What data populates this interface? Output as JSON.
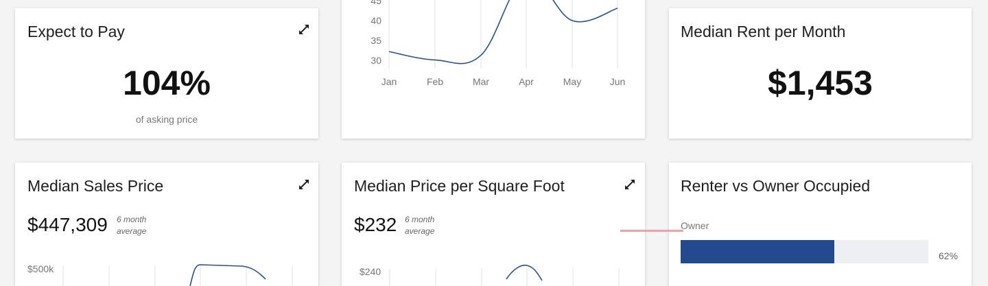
{
  "colors": {
    "line": "#2a4f8f",
    "bar_fill": "#234a8c",
    "bar_track": "#eef0f4",
    "grid": "#e2e2e2",
    "highlight_line": "#e8a3ab"
  },
  "cards": {
    "expect_to_pay": {
      "title": "Expect to Pay",
      "value": "104%",
      "caption": "of asking price",
      "icon": "expand-icon"
    },
    "trend_chart": {
      "y_ticks": [
        "45",
        "40",
        "35",
        "30"
      ],
      "x_ticks": [
        "Jan",
        "Feb",
        "Mar",
        "Apr",
        "May",
        "Jun"
      ]
    },
    "median_rent": {
      "title": "Median Rent per Month",
      "value": "$1,453"
    },
    "median_sales_price": {
      "title": "Median Sales Price",
      "value": "$447,309",
      "note_line1": "6 month",
      "note_line2": "average",
      "y_tick_top": "$500k",
      "icon": "expand-icon"
    },
    "price_per_sqft": {
      "title": "Median Price per Square Foot",
      "value": "$232",
      "note_line1": "6 month",
      "note_line2": "average",
      "y_tick_top": "$240",
      "icon": "expand-icon"
    },
    "renter_vs_owner": {
      "title": "Renter vs Owner Occupied",
      "bars": [
        {
          "label": "Owner",
          "percent_text": "62%",
          "fraction": 0.62
        }
      ]
    }
  },
  "chart_data": {
    "type": "line",
    "x": [
      "Jan",
      "Feb",
      "Mar",
      "Apr",
      "May",
      "Jun"
    ],
    "series": [
      {
        "values": [
          32.2,
          30.1,
          31.3,
          51,
          40,
          43.1
        ]
      }
    ],
    "ylim": [
      30,
      45
    ],
    "y_ticks": [
      30,
      35,
      40,
      45
    ],
    "grid": true
  }
}
